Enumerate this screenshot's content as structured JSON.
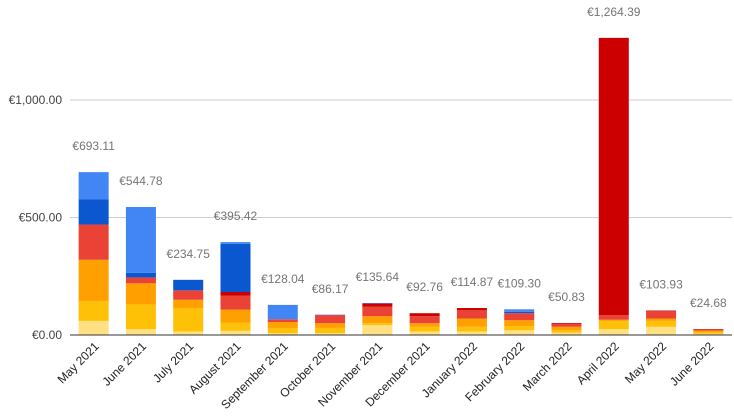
{
  "chart_data": {
    "type": "bar",
    "stacked": true,
    "categories": [
      "May 2021",
      "June 2021",
      "July 2021",
      "August 2021",
      "September 2021",
      "October 2021",
      "November 2021",
      "December 2021",
      "January 2022",
      "February 2022",
      "March 2022",
      "April 2022",
      "May 2022",
      "June 2022"
    ],
    "totals": [
      693.11,
      544.78,
      234.75,
      395.42,
      128.04,
      86.17,
      135.64,
      92.76,
      114.87,
      109.3,
      50.83,
      1264.39,
      103.93,
      24.68
    ],
    "total_labels": [
      "€693.11",
      "€544.78",
      "€234.75",
      "€395.42",
      "€128.04",
      "€86.17",
      "€135.64",
      "€92.76",
      "€114.87",
      "€109.30",
      "€50.83",
      "€1,264.39",
      "€103.93",
      "€24.68"
    ],
    "yticks": [
      {
        "value": 0,
        "label": "€0.00"
      },
      {
        "value": 500,
        "label": "€500.00"
      },
      {
        "value": 1000,
        "label": "€1,000.00"
      }
    ],
    "ylim": [
      0,
      1300
    ],
    "grid": true,
    "legend": "none",
    "series": [
      {
        "color": "#ffe082",
        "values": [
          60,
          25,
          15,
          18,
          8,
          8,
          42,
          15,
          15,
          20,
          10,
          25,
          35,
          5
        ]
      },
      {
        "color": "#ffc107",
        "values": [
          85,
          105,
          100,
          35,
          22,
          22,
          8,
          20,
          20,
          18,
          10,
          35,
          25,
          8
        ]
      },
      {
        "color": "#ffa000",
        "values": [
          175,
          90,
          35,
          55,
          25,
          20,
          30,
          15,
          35,
          25,
          15,
          5,
          10,
          6
        ]
      },
      {
        "color": "#ea4335",
        "values": [
          150,
          25,
          40,
          60,
          12,
          36,
          40,
          30,
          35,
          30,
          15,
          20,
          33,
          5
        ]
      },
      {
        "color": "#cc0000",
        "values": [
          0,
          0,
          0,
          15,
          0,
          0,
          15,
          12.76,
          9.87,
          0,
          0.83,
          1179.39,
          0.93,
          0.68
        ]
      },
      {
        "color": "#0b57d0",
        "values": [
          108,
          20,
          44.75,
          205,
          0,
          0,
          0,
          0,
          0,
          6,
          0,
          0,
          0,
          0
        ]
      },
      {
        "color": "#4285f4",
        "values": [
          115.11,
          279.78,
          0,
          7.42,
          61.04,
          0.17,
          0.64,
          0,
          0,
          10.3,
          0,
          0,
          0,
          0
        ]
      }
    ]
  }
}
